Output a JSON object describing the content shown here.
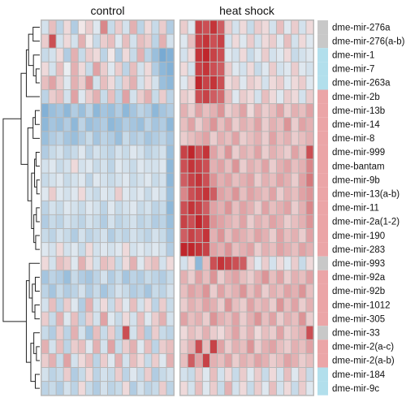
{
  "chart_data": {
    "type": "heatmap",
    "panels": [
      "control",
      "heat shock"
    ],
    "columns_per_panel": 18,
    "color_scale": {
      "low": "#4a8fc6",
      "mid": "#f5f5f5",
      "high": "#c0262c"
    },
    "annotation_colors": {
      "grey": "#c8c8c8",
      "blue": "#b2dfec",
      "pink": "#eba5a7"
    },
    "rows": [
      {
        "label": "dme-mir-276a",
        "group": "grey"
      },
      {
        "label": "dme-mir-276(a-b)",
        "group": "grey"
      },
      {
        "label": "dme-mir-1",
        "group": "blue"
      },
      {
        "label": "dme-mir-7",
        "group": "blue"
      },
      {
        "label": "dme-mir-263a",
        "group": "blue"
      },
      {
        "label": "dme-mir-2b",
        "group": "pink"
      },
      {
        "label": "dme-mir-13b",
        "group": "pink"
      },
      {
        "label": "dme-mir-14",
        "group": "pink"
      },
      {
        "label": "dme-mir-8",
        "group": "pink"
      },
      {
        "label": "dme-mir-999",
        "group": "pink"
      },
      {
        "label": "dme-bantam",
        "group": "pink"
      },
      {
        "label": "dme-mir-9b",
        "group": "pink"
      },
      {
        "label": "dme-mir-13(a-b)",
        "group": "pink"
      },
      {
        "label": "dme-mir-11",
        "group": "pink"
      },
      {
        "label": "dme-mir-2a(1-2)",
        "group": "pink"
      },
      {
        "label": "dme-mir-190",
        "group": "pink"
      },
      {
        "label": "dme-mir-283",
        "group": "pink"
      },
      {
        "label": "dme-mir-993",
        "group": "grey"
      },
      {
        "label": "dme-mir-92a",
        "group": "pink"
      },
      {
        "label": "dme-mir-92b",
        "group": "pink"
      },
      {
        "label": "dme-mir-1012",
        "group": "pink"
      },
      {
        "label": "dme-mir-305",
        "group": "pink"
      },
      {
        "label": "dme-mir-33",
        "group": "grey"
      },
      {
        "label": "dme-mir-2(a-c)",
        "group": "pink"
      },
      {
        "label": "dme-mir-2(a-b)",
        "group": "pink"
      },
      {
        "label": "dme-mir-184",
        "group": "blue"
      },
      {
        "label": "dme-mir-9c",
        "group": "blue"
      }
    ],
    "values": {
      "control": [
        [
          -0.3,
          0.4,
          -0.5,
          0.2,
          -0.6,
          0.1,
          0.3,
          -0.2,
          0.8,
          -0.4,
          0.3,
          -0.3,
          0.5,
          -0.5,
          0.2,
          -0.4,
          0.3,
          -0.6
        ],
        [
          0.3,
          1.2,
          -0.3,
          0.2,
          -0.3,
          0.5,
          0.1,
          -0.4,
          0.3,
          0.4,
          -0.2,
          0.4,
          -0.3,
          0.4,
          0.3,
          -0.5,
          0.5,
          -0.3
        ],
        [
          -0.4,
          -0.3,
          0.2,
          -0.6,
          0.5,
          -0.4,
          0.3,
          0.2,
          -0.5,
          0.1,
          -0.6,
          0.2,
          -0.4,
          0.5,
          -0.5,
          -0.8,
          -1.1,
          -1.0
        ],
        [
          0.2,
          -0.3,
          0.4,
          -0.1,
          0.5,
          0.2,
          -0.4,
          0.6,
          0.3,
          -0.2,
          0.3,
          -0.5,
          0.4,
          -0.3,
          0.2,
          -0.6,
          -0.9,
          -1.0
        ],
        [
          0.4,
          0.6,
          0.3,
          -0.2,
          0.5,
          0.3,
          0.7,
          -0.3,
          0.4,
          0.2,
          -0.4,
          0.3,
          0.5,
          -0.3,
          0.2,
          -0.3,
          -0.8,
          -0.9
        ],
        [
          -0.5,
          0.3,
          0.4,
          -0.3,
          0.6,
          -0.2,
          0.3,
          0.5,
          -0.4,
          0.4,
          -0.5,
          0.6,
          -0.3,
          0.3,
          0.5,
          -0.4,
          0.3,
          -0.5
        ],
        [
          -1.0,
          -0.8,
          -0.7,
          -0.9,
          -0.6,
          -0.8,
          -0.5,
          -0.9,
          -0.7,
          -0.8,
          -0.6,
          -0.9,
          -0.7,
          -0.5,
          -0.6,
          -0.9,
          -0.7,
          -0.6
        ],
        [
          -0.9,
          -0.7,
          -0.8,
          -0.6,
          -0.9,
          -0.5,
          -0.8,
          -0.7,
          -0.6,
          -0.9,
          -0.8,
          -0.6,
          -0.7,
          -0.8,
          -0.5,
          -0.7,
          -0.6,
          -0.9
        ],
        [
          -0.8,
          -0.6,
          -0.5,
          -0.7,
          -0.8,
          -0.6,
          -0.4,
          -0.7,
          -0.5,
          -0.6,
          -0.8,
          -0.4,
          -0.6,
          -0.5,
          -0.7,
          -0.6,
          -0.5,
          -0.7
        ],
        [
          -0.6,
          -0.4,
          -0.3,
          -0.5,
          -0.4,
          -0.2,
          -0.5,
          -0.3,
          -0.4,
          -0.5,
          -0.3,
          -0.4,
          -0.2,
          -0.3,
          -0.5,
          -0.4,
          -0.3,
          -0.8
        ],
        [
          -0.3,
          -0.2,
          -0.4,
          -0.3,
          0.2,
          -0.3,
          -0.2,
          -0.4,
          -0.3,
          -0.5,
          -0.2,
          -0.3,
          -0.4,
          -0.2,
          -0.3,
          -0.3,
          -0.2,
          -0.9
        ],
        [
          -0.4,
          -0.3,
          -0.2,
          -0.4,
          -0.3,
          -0.2,
          -0.5,
          -0.2,
          -0.3,
          -0.4,
          -0.3,
          -0.2,
          -0.4,
          -0.3,
          -0.2,
          -0.4,
          -0.3,
          -0.9
        ],
        [
          -0.2,
          0.3,
          -0.2,
          -0.3,
          -0.2,
          0.2,
          -0.3,
          -0.4,
          -0.2,
          -0.3,
          0.3,
          -0.2,
          -0.3,
          -0.2,
          -0.4,
          -0.2,
          -0.3,
          -0.8
        ],
        [
          -0.5,
          -0.3,
          -0.4,
          -0.2,
          -0.3,
          -0.4,
          -0.2,
          -0.3,
          -0.5,
          -0.2,
          -0.4,
          -0.3,
          -0.2,
          -0.4,
          -0.3,
          -0.5,
          -0.4,
          -0.9
        ],
        [
          -0.6,
          -0.4,
          -0.5,
          -0.3,
          -0.4,
          -0.5,
          -0.3,
          -0.4,
          -0.6,
          -0.3,
          -0.5,
          -0.4,
          -0.3,
          -0.5,
          -0.4,
          -0.6,
          -0.5,
          -0.8
        ],
        [
          -0.4,
          -0.5,
          -0.3,
          -0.4,
          -0.6,
          -0.3,
          -0.5,
          -0.4,
          -0.3,
          -0.6,
          -0.4,
          -0.5,
          -0.3,
          -0.4,
          -0.5,
          -0.3,
          -0.4,
          -0.7
        ],
        [
          -0.2,
          -0.3,
          0.2,
          -0.3,
          -0.2,
          -0.4,
          0.2,
          -0.3,
          -0.2,
          -0.3,
          -0.2,
          0.2,
          -0.3,
          -0.2,
          -0.3,
          -0.2,
          -0.3,
          -0.6
        ],
        [
          0.2,
          -0.3,
          0.4,
          0.3,
          -0.2,
          0.5,
          0.2,
          -0.3,
          0.4,
          0.3,
          -0.4,
          0.2,
          0.5,
          -0.2,
          0.3,
          0.4,
          -0.3,
          0.2
        ],
        [
          -0.7,
          -0.5,
          -0.6,
          -0.8,
          -0.4,
          -0.6,
          -0.7,
          -0.5,
          -0.3,
          -0.6,
          -0.4,
          -0.7,
          -0.5,
          -0.6,
          -0.4,
          -0.5,
          -0.6,
          -0.4
        ],
        [
          -0.5,
          -0.7,
          -0.4,
          -0.6,
          -0.5,
          -0.3,
          -0.6,
          -0.4,
          -0.7,
          -0.5,
          -0.3,
          -0.4,
          -0.6,
          -0.5,
          -0.7,
          -0.4,
          -0.5,
          -0.3
        ],
        [
          -0.3,
          0.4,
          -0.5,
          0.3,
          -0.2,
          -0.6,
          0.5,
          -0.3,
          0.2,
          -0.4,
          0.3,
          -0.2,
          0.4,
          -0.3,
          0.2,
          -0.5,
          0.3,
          -0.4
        ],
        [
          0.3,
          -0.4,
          0.5,
          -0.2,
          0.4,
          -0.5,
          0.3,
          -0.3,
          0.6,
          -0.2,
          -0.4,
          0.2,
          -0.3,
          0.4,
          -0.2,
          0.3,
          0.5,
          -0.3
        ],
        [
          -0.4,
          -0.6,
          0.3,
          -0.5,
          0.5,
          -0.3,
          -0.7,
          0.4,
          -0.4,
          0.3,
          -0.5,
          1.2,
          -0.3,
          0.4,
          -0.6,
          0.3,
          -0.4,
          -0.5
        ],
        [
          0.5,
          -0.3,
          0.4,
          -0.5,
          0.3,
          0.4,
          -0.2,
          0.5,
          -0.3,
          0.6,
          -0.4,
          0.3,
          0.5,
          -0.2,
          0.4,
          -0.5,
          0.3,
          0.4
        ],
        [
          0.3,
          0.5,
          -0.4,
          0.6,
          -0.3,
          0.2,
          0.4,
          -0.5,
          0.3,
          -0.2,
          0.5,
          -0.3,
          0.4,
          0.2,
          -0.4,
          0.3,
          -0.2,
          0.5
        ],
        [
          -0.3,
          -0.5,
          -0.4,
          0.3,
          -0.6,
          -0.4,
          0.2,
          -0.5,
          -0.3,
          -0.4,
          0.3,
          -0.5,
          -0.2,
          -0.4,
          0.3,
          -0.6,
          -0.4,
          -0.3
        ],
        [
          -0.5,
          -0.4,
          -0.6,
          -0.3,
          -0.5,
          0.2,
          -0.4,
          -0.6,
          -0.3,
          -0.5,
          -0.4,
          0.2,
          -0.6,
          -0.3,
          -0.5,
          -0.4,
          0.3,
          -0.5
        ]
      ],
      "heat_shock": [
        [
          0.3,
          -0.2,
          1.3,
          1.2,
          1.4,
          1.1,
          0.3,
          -0.3,
          0.2,
          -0.4,
          0.3,
          0.2,
          -0.3,
          0.4,
          -0.2,
          0.3,
          -0.3,
          0.2
        ],
        [
          -0.2,
          0.4,
          1.3,
          1.4,
          1.2,
          1.3,
          -0.3,
          0.2,
          -0.2,
          0.3,
          -0.3,
          0.2,
          0.3,
          -0.2,
          0.4,
          -0.3,
          0.2,
          -0.2
        ],
        [
          -0.3,
          0.2,
          1.4,
          1.5,
          1.3,
          1.2,
          -0.2,
          -0.3,
          0.2,
          -0.4,
          -0.2,
          0.3,
          -0.3,
          -0.2,
          0.2,
          -0.4,
          -0.3,
          -0.2
        ],
        [
          0.2,
          -0.3,
          1.3,
          1.4,
          1.2,
          1.1,
          0.3,
          -0.2,
          -0.3,
          0.2,
          -0.4,
          -0.2,
          0.3,
          -0.3,
          -0.2,
          0.3,
          -0.2,
          -0.3
        ],
        [
          -0.2,
          0.3,
          1.5,
          1.3,
          1.4,
          1.2,
          0.2,
          0.3,
          -0.2,
          0.3,
          0.2,
          -0.3,
          0.2,
          0.3,
          -0.2,
          0.2,
          0.3,
          -0.2
        ],
        [
          0.3,
          0.2,
          1.2,
          1.3,
          1.1,
          1.0,
          0.4,
          -0.2,
          0.3,
          0.2,
          -0.3,
          0.4,
          0.2,
          -0.2,
          0.3,
          0.2,
          -0.3,
          0.3
        ],
        [
          0.5,
          0.3,
          0.6,
          0.4,
          0.5,
          0.7,
          0.3,
          0.4,
          0.6,
          0.2,
          0.5,
          0.3,
          0.4,
          0.6,
          0.3,
          0.5,
          0.4,
          0.6
        ],
        [
          0.4,
          0.6,
          0.3,
          0.5,
          0.7,
          0.4,
          0.6,
          0.3,
          0.5,
          0.4,
          0.6,
          0.3,
          0.5,
          0.4,
          0.7,
          0.3,
          0.6,
          0.5
        ],
        [
          0.3,
          0.4,
          0.5,
          0.6,
          0.3,
          0.5,
          0.4,
          0.6,
          0.3,
          0.4,
          0.5,
          0.3,
          0.6,
          0.4,
          0.5,
          0.3,
          0.4,
          0.5
        ],
        [
          1.3,
          1.5,
          1.2,
          1.4,
          0.6,
          0.4,
          0.7,
          0.3,
          0.5,
          0.4,
          0.6,
          0.3,
          0.5,
          0.4,
          0.3,
          0.6,
          0.4,
          1.2
        ],
        [
          1.2,
          1.4,
          1.3,
          1.2,
          0.5,
          0.6,
          0.4,
          0.7,
          0.3,
          0.5,
          0.4,
          0.6,
          0.3,
          0.5,
          0.6,
          0.4,
          0.5,
          0.8
        ],
        [
          1.1,
          1.3,
          1.4,
          1.2,
          0.7,
          0.5,
          0.6,
          0.4,
          0.5,
          0.6,
          0.3,
          0.5,
          0.4,
          0.6,
          0.5,
          0.3,
          0.6,
          0.9
        ],
        [
          0.8,
          1.2,
          1.3,
          1.4,
          1.1,
          0.6,
          0.5,
          0.7,
          0.4,
          0.6,
          0.5,
          0.4,
          0.6,
          0.3,
          0.5,
          0.4,
          0.6,
          0.7
        ],
        [
          1.2,
          1.4,
          1.3,
          1.1,
          0.6,
          0.5,
          0.7,
          0.4,
          0.6,
          0.5,
          0.3,
          0.6,
          0.4,
          0.5,
          0.6,
          0.3,
          0.5,
          0.8
        ],
        [
          1.3,
          1.2,
          1.5,
          1.3,
          0.7,
          0.6,
          0.5,
          0.4,
          0.6,
          0.3,
          0.5,
          0.4,
          0.6,
          0.5,
          0.3,
          0.4,
          0.5,
          0.7
        ],
        [
          1.1,
          1.3,
          1.2,
          1.4,
          0.5,
          0.7,
          0.4,
          0.6,
          0.5,
          0.4,
          0.6,
          0.5,
          0.3,
          0.6,
          0.4,
          0.5,
          0.3,
          0.6
        ],
        [
          1.5,
          1.6,
          1.4,
          1.3,
          0.6,
          0.5,
          0.7,
          0.4,
          0.5,
          0.6,
          0.3,
          0.5,
          0.4,
          0.6,
          0.5,
          0.4,
          0.6,
          0.5
        ],
        [
          -0.3,
          0.2,
          -0.9,
          0.4,
          1.2,
          1.4,
          1.3,
          1.2,
          1.1,
          0.3,
          -0.2,
          0.3,
          -0.3,
          0.2,
          -0.2,
          0.3,
          -0.4,
          0.2
        ],
        [
          0.5,
          0.3,
          0.6,
          0.4,
          0.7,
          0.3,
          0.5,
          0.6,
          0.4,
          0.3,
          0.5,
          0.7,
          0.4,
          0.6,
          0.3,
          0.5,
          0.4,
          0.6
        ],
        [
          0.4,
          0.6,
          0.5,
          0.7,
          0.3,
          0.6,
          0.4,
          0.5,
          0.7,
          0.4,
          0.6,
          0.3,
          0.5,
          0.4,
          0.6,
          0.5,
          0.7,
          0.4
        ],
        [
          0.3,
          0.5,
          0.4,
          0.6,
          0.5,
          0.3,
          0.7,
          0.4,
          0.3,
          0.6,
          0.4,
          0.5,
          0.3,
          0.7,
          0.4,
          0.6,
          0.3,
          0.5
        ],
        [
          0.6,
          0.4,
          0.5,
          0.3,
          0.7,
          0.5,
          0.4,
          0.6,
          0.3,
          0.5,
          0.7,
          0.4,
          0.6,
          0.3,
          0.5,
          0.4,
          0.7,
          0.3
        ],
        [
          0.2,
          0.4,
          0.3,
          0.5,
          0.3,
          0.2,
          0.4,
          0.6,
          0.3,
          0.5,
          0.2,
          0.4,
          0.3,
          0.6,
          0.3,
          0.4,
          0.5,
          1.2
        ],
        [
          0.3,
          0.5,
          1.2,
          0.4,
          1.3,
          0.6,
          0.3,
          0.5,
          0.4,
          0.7,
          0.3,
          0.5,
          0.6,
          0.4,
          0.3,
          0.5,
          0.4,
          0.6
        ],
        [
          0.4,
          1.1,
          0.6,
          1.3,
          0.5,
          0.4,
          0.6,
          0.3,
          0.5,
          0.4,
          0.6,
          0.5,
          0.3,
          0.4,
          0.6,
          0.5,
          0.3,
          0.4
        ],
        [
          -0.3,
          -0.4,
          0.3,
          -0.2,
          0.4,
          -0.3,
          0.2,
          -0.4,
          0.3,
          -0.2,
          0.3,
          -0.4,
          0.2,
          -0.3,
          0.4,
          -0.2,
          0.3,
          -0.4
        ],
        [
          0.2,
          -0.3,
          0.4,
          -0.2,
          0.3,
          -0.4,
          0.5,
          -0.3,
          0.2,
          -0.4,
          0.3,
          -0.2,
          0.4,
          -0.3,
          0.2,
          -0.4,
          0.3,
          -0.2
        ]
      ]
    }
  }
}
